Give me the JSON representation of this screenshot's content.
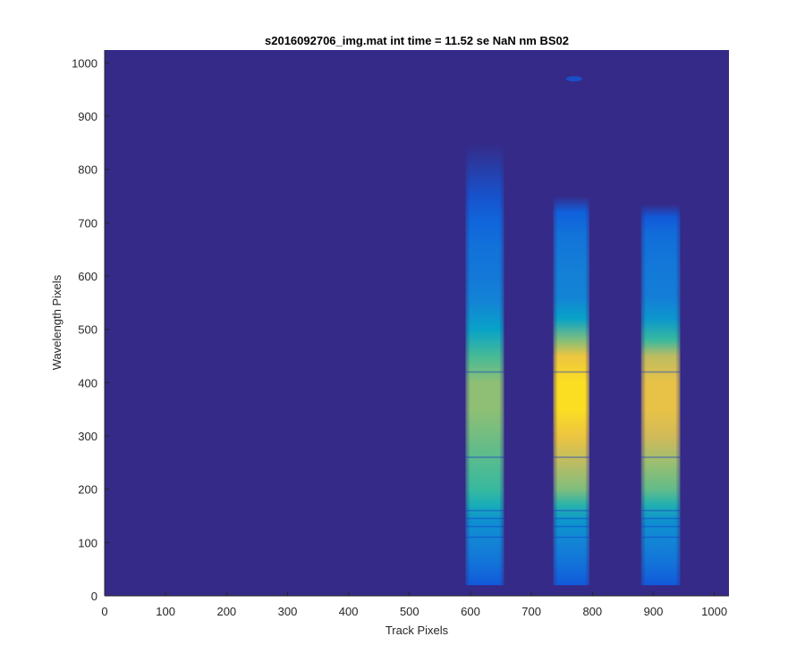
{
  "chart_data": {
    "type": "heatmap",
    "title": "s2016092706_img.mat int time = 11.52 se  NaN nm BS02",
    "xlabel": "Track Pixels",
    "ylabel": "Wavelength Pixels",
    "xlim": [
      0,
      1024
    ],
    "ylim": [
      0,
      1024
    ],
    "xticks": [
      0,
      100,
      200,
      300,
      400,
      500,
      600,
      700,
      800,
      900,
      1000
    ],
    "yticks": [
      0,
      100,
      200,
      300,
      400,
      500,
      600,
      700,
      800,
      900,
      1000
    ],
    "grid": false,
    "background_color": "#352a87",
    "colormap": "parula",
    "colormap_stops": [
      "#352a87",
      "#0f5cdd",
      "#1481d6",
      "#06a7c6",
      "#38b99e",
      "#92bf73",
      "#d9ba56",
      "#fcce2e",
      "#f9fb0e"
    ],
    "bands": [
      {
        "x_range": [
          592,
          655
        ],
        "y_range": [
          20,
          850
        ],
        "intensity_profile": [
          {
            "y": 20,
            "v": 0.12
          },
          {
            "y": 60,
            "v": 0.2
          },
          {
            "y": 100,
            "v": 0.26
          },
          {
            "y": 140,
            "v": 0.3
          },
          {
            "y": 170,
            "v": 0.42
          },
          {
            "y": 200,
            "v": 0.5
          },
          {
            "y": 250,
            "v": 0.54
          },
          {
            "y": 300,
            "v": 0.58
          },
          {
            "y": 350,
            "v": 0.62
          },
          {
            "y": 400,
            "v": 0.62
          },
          {
            "y": 450,
            "v": 0.52
          },
          {
            "y": 500,
            "v": 0.36
          },
          {
            "y": 550,
            "v": 0.26
          },
          {
            "y": 600,
            "v": 0.22
          },
          {
            "y": 650,
            "v": 0.2
          },
          {
            "y": 700,
            "v": 0.16
          },
          {
            "y": 750,
            "v": 0.1
          },
          {
            "y": 800,
            "v": 0.05
          },
          {
            "y": 850,
            "v": 0.0
          }
        ]
      },
      {
        "x_range": [
          736,
          795
        ],
        "y_range": [
          20,
          750
        ],
        "intensity_profile": [
          {
            "y": 20,
            "v": 0.12
          },
          {
            "y": 60,
            "v": 0.2
          },
          {
            "y": 100,
            "v": 0.26
          },
          {
            "y": 140,
            "v": 0.32
          },
          {
            "y": 170,
            "v": 0.46
          },
          {
            "y": 200,
            "v": 0.6
          },
          {
            "y": 250,
            "v": 0.7
          },
          {
            "y": 300,
            "v": 0.82
          },
          {
            "y": 350,
            "v": 0.92
          },
          {
            "y": 400,
            "v": 0.92
          },
          {
            "y": 450,
            "v": 0.82
          },
          {
            "y": 480,
            "v": 0.6
          },
          {
            "y": 520,
            "v": 0.36
          },
          {
            "y": 560,
            "v": 0.26
          },
          {
            "y": 620,
            "v": 0.24
          },
          {
            "y": 680,
            "v": 0.2
          },
          {
            "y": 720,
            "v": 0.14
          },
          {
            "y": 750,
            "v": 0.0
          }
        ]
      },
      {
        "x_range": [
          880,
          944
        ],
        "y_range": [
          20,
          735
        ],
        "intensity_profile": [
          {
            "y": 20,
            "v": 0.12
          },
          {
            "y": 60,
            "v": 0.2
          },
          {
            "y": 100,
            "v": 0.26
          },
          {
            "y": 140,
            "v": 0.3
          },
          {
            "y": 170,
            "v": 0.44
          },
          {
            "y": 200,
            "v": 0.56
          },
          {
            "y": 250,
            "v": 0.64
          },
          {
            "y": 300,
            "v": 0.74
          },
          {
            "y": 350,
            "v": 0.8
          },
          {
            "y": 400,
            "v": 0.8
          },
          {
            "y": 450,
            "v": 0.7
          },
          {
            "y": 480,
            "v": 0.5
          },
          {
            "y": 520,
            "v": 0.32
          },
          {
            "y": 560,
            "v": 0.24
          },
          {
            "y": 620,
            "v": 0.22
          },
          {
            "y": 680,
            "v": 0.18
          },
          {
            "y": 710,
            "v": 0.12
          },
          {
            "y": 735,
            "v": 0.0
          }
        ]
      }
    ],
    "absorption_lines_y": [
      110,
      130,
      145,
      160,
      260,
      420
    ],
    "hot_spot": {
      "x": 770,
      "y": 970,
      "intensity": 0.12
    }
  }
}
